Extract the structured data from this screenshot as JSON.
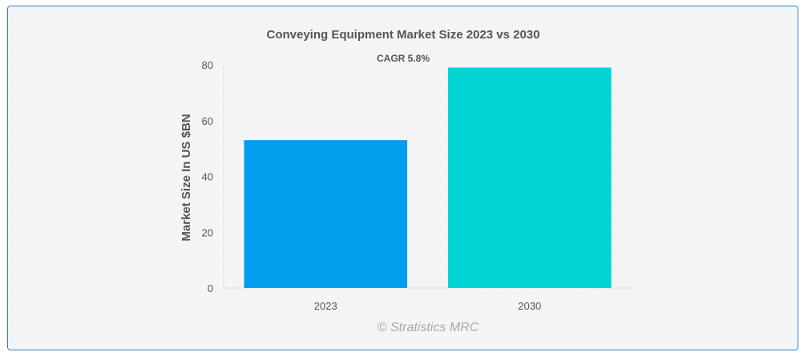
{
  "chart_data": {
    "type": "bar",
    "title": "Conveying Equipment Market Size 2023 vs 2030",
    "annotation": "CAGR 5.8%",
    "xlabel": "",
    "ylabel": "Market Size In US $BN",
    "categories": [
      "2023",
      "2030"
    ],
    "values": [
      53,
      79
    ],
    "colors": [
      "#049eee",
      "#00d4d4"
    ],
    "ylim": [
      0,
      80
    ],
    "yticks": [
      0,
      20,
      40,
      60,
      80
    ],
    "grid": false,
    "legend": "none"
  },
  "watermark": "© Stratistics MRC"
}
